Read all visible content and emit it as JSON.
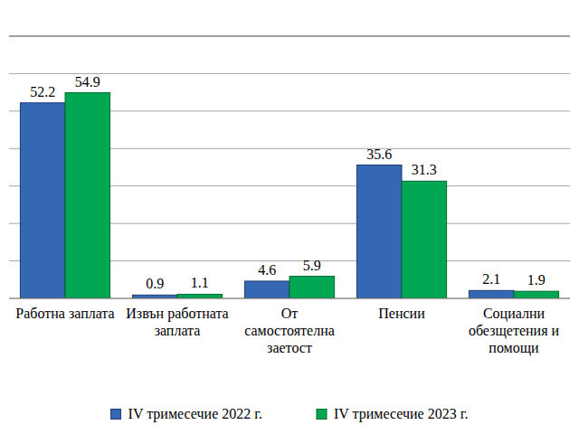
{
  "chart_data": {
    "type": "bar",
    "categories": [
      "Работна заплата",
      "Извън работната заплата",
      "От самостоятелна заетост",
      "Пенсии",
      "Социални обезщетения и помощи"
    ],
    "series": [
      {
        "name": "IV тримесечие 2022 г.",
        "color": "#3467b4",
        "values": [
          52.2,
          0.9,
          4.6,
          35.6,
          2.1
        ]
      },
      {
        "name": "IV тримесечие 2023 г.",
        "color": "#00a651",
        "values": [
          54.9,
          1.1,
          5.9,
          31.3,
          1.9
        ]
      }
    ],
    "ylim": [
      0,
      70
    ],
    "yticks": [
      0,
      10,
      20,
      30,
      40,
      50,
      60,
      70
    ],
    "grid": true,
    "data_labels": true,
    "tick_labels": "x",
    "legend": "bottom"
  }
}
